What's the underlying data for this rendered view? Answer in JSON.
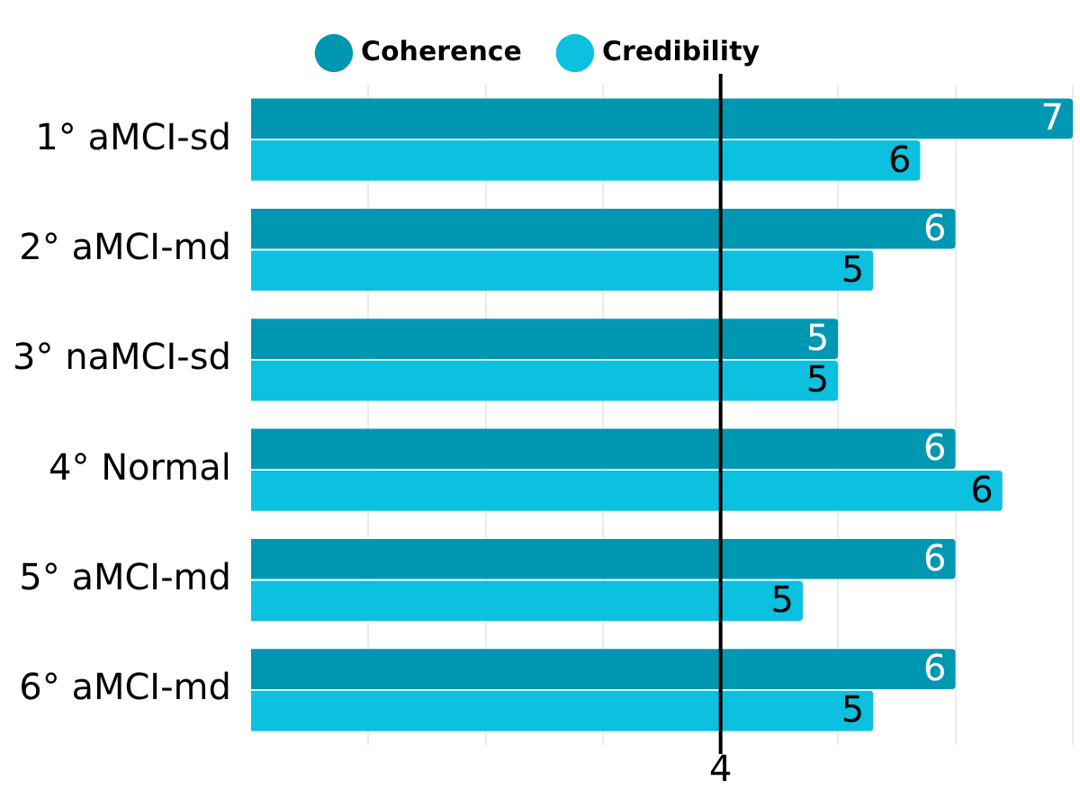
{
  "chart_data": {
    "type": "bar",
    "orientation": "horizontal",
    "categories": [
      "1° aMCI-sd",
      "2° aMCI-md",
      "3° naMCI-sd",
      "4° Normal",
      "5° aMCI-md",
      "6° aMCI-md"
    ],
    "series": [
      {
        "name": "Coherence",
        "color": "#0097b2",
        "values": [
          7.0,
          6.0,
          5.0,
          6.0,
          6.0,
          6.0
        ],
        "value_labels": [
          "7",
          "6",
          "5",
          "6",
          "6",
          "6"
        ]
      },
      {
        "name": "Credibility",
        "color": "#0cc0df",
        "values": [
          5.7,
          5.3,
          5.0,
          6.4,
          4.7,
          5.3
        ],
        "value_labels": [
          "6",
          "5",
          "5",
          "6",
          "5",
          "5"
        ]
      }
    ],
    "xlim": [
      0,
      7
    ],
    "xticks": [
      {
        "value": 1,
        "label": null
      },
      {
        "value": 2,
        "label": null
      },
      {
        "value": 3,
        "label": null
      },
      4,
      {
        "value": 5,
        "label": null
      },
      {
        "value": 6,
        "label": null
      },
      {
        "value": 7,
        "label": null
      }
    ],
    "ref_lines": [
      {
        "axis": "x",
        "value": 4,
        "color": "#000000"
      }
    ],
    "grid": "x",
    "legend": "top"
  }
}
